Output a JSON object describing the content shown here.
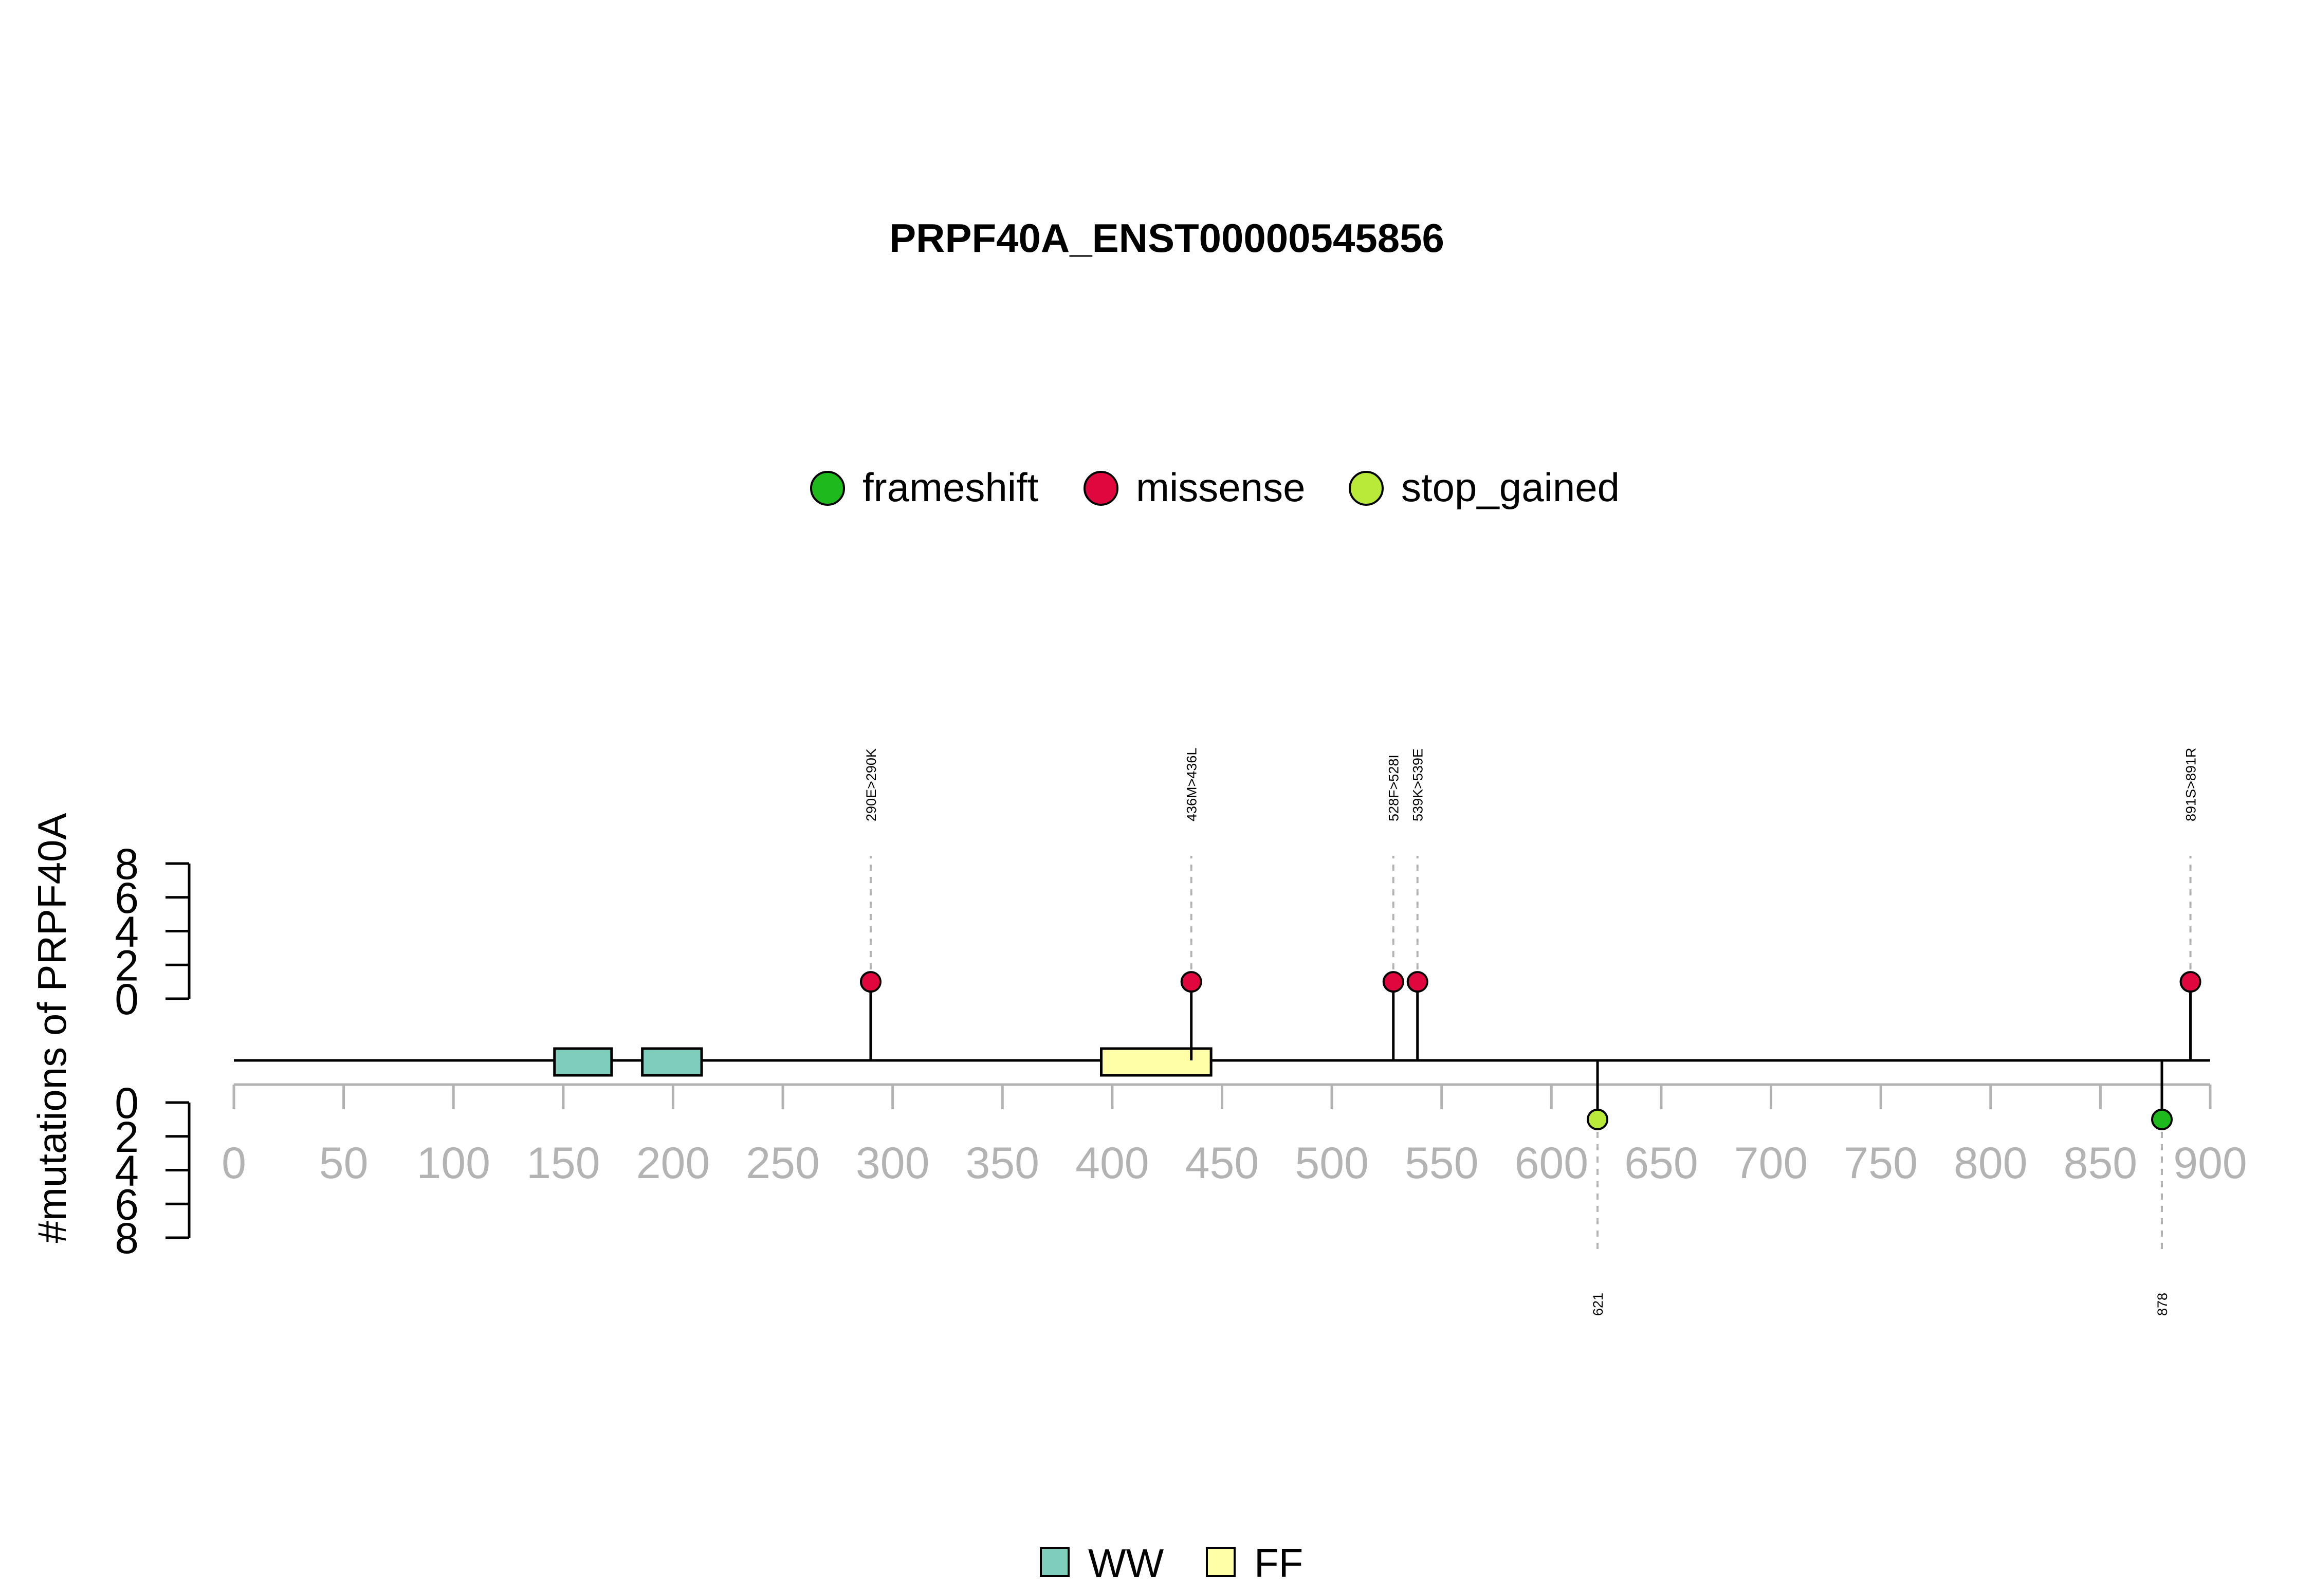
{
  "chart_data": {
    "type": "lollipop",
    "title": "PRPF40A_ENST00000545856",
    "ylabel": "#mutations of PRPF40A",
    "x_ticks": [
      0,
      50,
      100,
      150,
      200,
      250,
      300,
      350,
      400,
      450,
      500,
      550,
      600,
      650,
      700,
      750,
      800,
      850,
      900
    ],
    "xlim": [
      0,
      900
    ],
    "y_ticks_upper": [
      0,
      2,
      4,
      6,
      8
    ],
    "y_ticks_lower": [
      0,
      2,
      4,
      6,
      8
    ],
    "ylim": [
      0,
      8
    ],
    "legend_top": [
      {
        "label": "frameshift",
        "color": "#1db91d"
      },
      {
        "label": "missense",
        "color": "#e0073f"
      },
      {
        "label": "stop_gained",
        "color": "#b9ea3a"
      }
    ],
    "legend_bottom": [
      {
        "label": "WW",
        "color": "#7fcdbb"
      },
      {
        "label": "FF",
        "color": "#ffffa8"
      }
    ],
    "domains": [
      {
        "name": "WW",
        "start": 146,
        "end": 172,
        "color": "#7fcdbb"
      },
      {
        "name": "WW",
        "start": 186,
        "end": 213,
        "color": "#7fcdbb"
      },
      {
        "name": "FF",
        "start": 395,
        "end": 445,
        "color": "#ffffa8"
      }
    ],
    "mutations_upper": [
      {
        "position": 290,
        "count": 1,
        "type": "missense",
        "label": "290E>290K"
      },
      {
        "position": 436,
        "count": 1,
        "type": "missense",
        "label": "436M>436L"
      },
      {
        "position": 528,
        "count": 1,
        "type": "missense",
        "label": "528F>528I"
      },
      {
        "position": 539,
        "count": 1,
        "type": "missense",
        "label": "539K>539E"
      },
      {
        "position": 891,
        "count": 1,
        "type": "missense",
        "label": "891S>891R"
      }
    ],
    "mutations_lower": [
      {
        "position": 621,
        "count": 1,
        "type": "stop_gained",
        "label": "621"
      },
      {
        "position": 878,
        "count": 1,
        "type": "frameshift",
        "label": "878"
      }
    ]
  }
}
